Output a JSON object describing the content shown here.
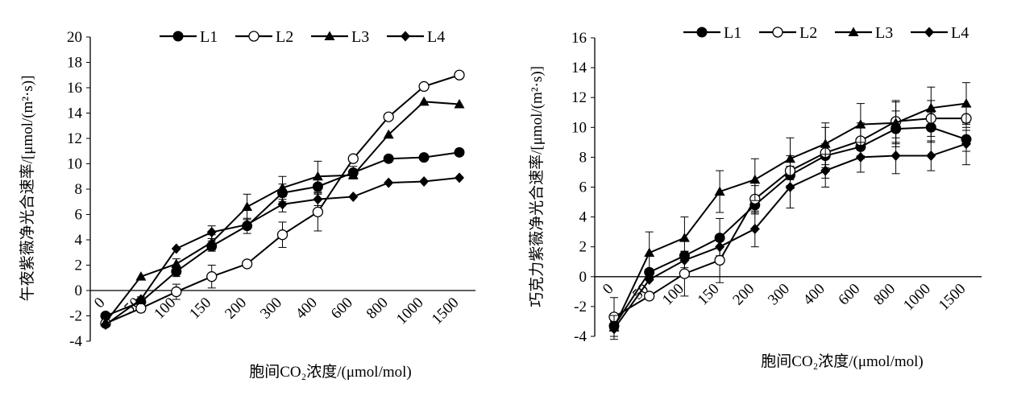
{
  "chart_data": [
    {
      "type": "line",
      "x_tick_labels": [
        "0",
        "50",
        "100",
        "150",
        "200",
        "300",
        "400",
        "600",
        "800",
        "1000",
        "1500"
      ],
      "xlabel": "胞间CO₂浓度/(μmol/mol)",
      "ylabel": "午夜紫薇净光合速率/[μmol/(m²·s)]",
      "ylim": [
        -4,
        20
      ],
      "yticks": [
        -4,
        -2,
        0,
        2,
        4,
        6,
        8,
        10,
        12,
        14,
        16,
        18,
        20
      ],
      "legend_position": "top",
      "x": [
        "0",
        "50",
        "100",
        "150",
        "200",
        "300",
        "400",
        "600",
        "800",
        "1000",
        "1500"
      ],
      "series": [
        {
          "name": "L1",
          "marker": "filled-circle",
          "values": [
            -2.0,
            -0.9,
            1.5,
            3.5,
            5.1,
            7.7,
            8.2,
            9.3,
            10.4,
            10.5,
            10.9
          ],
          "errors": [
            0,
            0.4,
            0.4,
            0.4,
            0.6,
            0.7,
            0.6,
            0.5,
            0,
            0,
            0
          ]
        },
        {
          "name": "L2",
          "marker": "open-circle",
          "values": [
            -2.6,
            -1.4,
            -0.1,
            1.1,
            2.1,
            4.4,
            6.2,
            10.4,
            13.7,
            16.1,
            17.0
          ],
          "errors": [
            0,
            0.3,
            0.6,
            0.9,
            0,
            1.0,
            1.5,
            0,
            0,
            0,
            0
          ]
        },
        {
          "name": "L3",
          "marker": "filled-triangle",
          "values": [
            -2.5,
            1.1,
            2.1,
            3.8,
            6.6,
            8.1,
            9.0,
            9.1,
            12.3,
            14.9,
            14.7
          ],
          "errors": [
            0,
            0,
            0.4,
            0.6,
            1.0,
            0.9,
            1.2,
            0,
            0,
            0,
            0
          ]
        },
        {
          "name": "L4",
          "marker": "filled-diamond",
          "values": [
            -2.7,
            -0.7,
            3.3,
            4.6,
            5.2,
            6.8,
            7.2,
            7.4,
            8.5,
            8.6,
            8.9
          ],
          "errors": [
            0,
            0,
            0,
            0.5,
            0,
            0.6,
            0.5,
            0,
            0,
            0,
            0
          ]
        }
      ]
    },
    {
      "type": "line",
      "x_tick_labels": [
        "0",
        "50",
        "100",
        "150",
        "200",
        "300",
        "400",
        "600",
        "800",
        "1000",
        "1500"
      ],
      "xlabel": "胞间CO₂浓度/(μmol/mol)",
      "ylabel": "巧克力紫薇净光合速率/[μmol/(m²·s)]",
      "ylim": [
        -4,
        16
      ],
      "yticks": [
        -4,
        -2,
        0,
        2,
        4,
        6,
        8,
        10,
        12,
        14,
        16
      ],
      "legend_position": "top",
      "x": [
        "0",
        "50",
        "100",
        "150",
        "200",
        "300",
        "400",
        "600",
        "800",
        "1000",
        "1500"
      ],
      "series": [
        {
          "name": "L1",
          "marker": "filled-circle",
          "values": [
            -3.3,
            0.3,
            1.4,
            2.6,
            4.8,
            6.8,
            8.1,
            8.7,
            9.9,
            10.0,
            9.2
          ],
          "errors": [
            0.7,
            0,
            0.3,
            1.3,
            0.6,
            0.9,
            0.8,
            0.6,
            1.2,
            1.0,
            0.8
          ]
        },
        {
          "name": "L2",
          "marker": "open-circle",
          "values": [
            -2.7,
            -1.3,
            0.2,
            1.1,
            5.2,
            7.1,
            8.3,
            9.1,
            10.4,
            10.6,
            10.6
          ],
          "errors": [
            1.3,
            0,
            1.5,
            1.5,
            0.9,
            1.0,
            1.7,
            1.2,
            1.4,
            1.2,
            0.8
          ]
        },
        {
          "name": "L3",
          "marker": "filled-triangle",
          "values": [
            -3.4,
            1.6,
            2.6,
            5.7,
            6.5,
            7.9,
            8.9,
            10.2,
            10.3,
            11.3,
            11.6
          ],
          "errors": [
            0.8,
            1.4,
            1.4,
            1.4,
            1.4,
            1.4,
            1.4,
            1.4,
            1.4,
            1.4,
            1.4
          ]
        },
        {
          "name": "L4",
          "marker": "filled-diamond",
          "values": [
            -3.5,
            -0.2,
            1.1,
            2.0,
            3.2,
            6.0,
            7.1,
            8.0,
            8.1,
            8.1,
            8.9
          ],
          "errors": [
            0.5,
            0,
            0.5,
            0.6,
            1.2,
            1.4,
            1.1,
            1.0,
            1.2,
            1.0,
            1.4
          ]
        }
      ]
    }
  ]
}
